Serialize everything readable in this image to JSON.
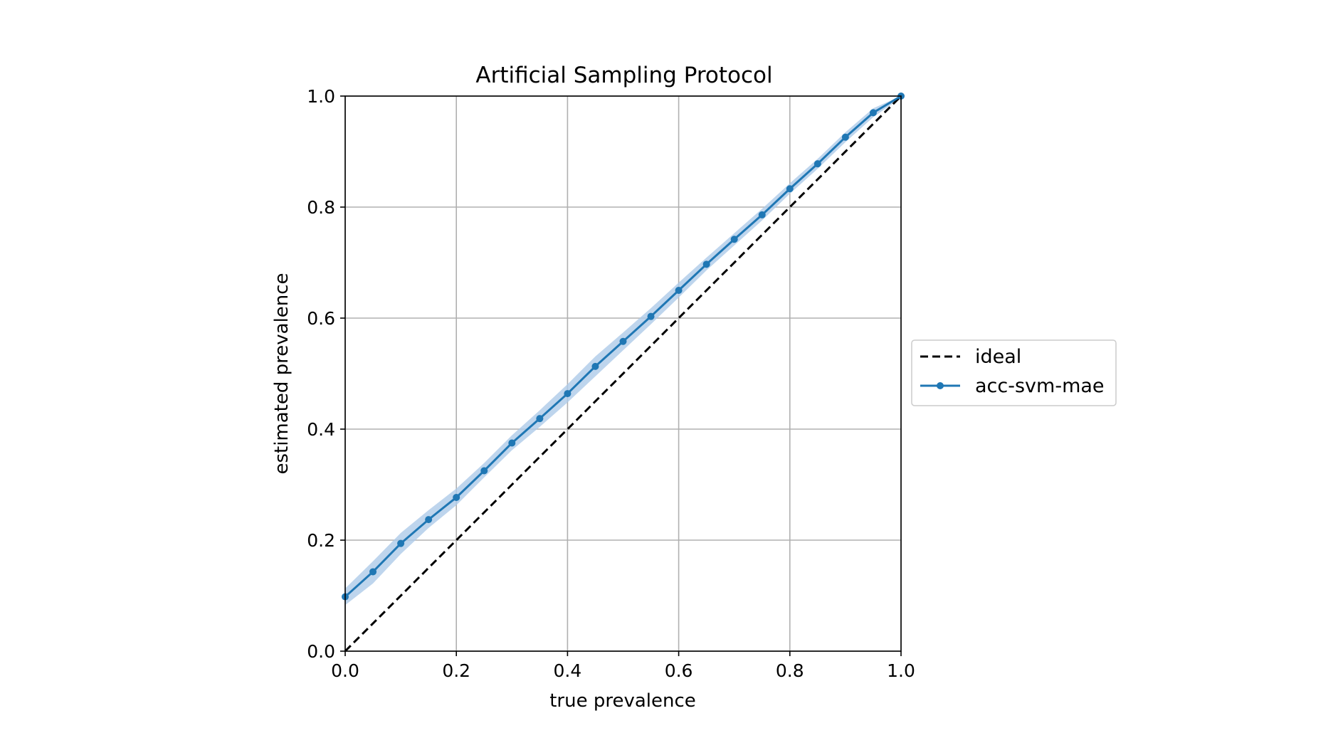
{
  "chart_data": {
    "type": "line",
    "title": "Artificial Sampling Protocol",
    "xlabel": "true prevalence",
    "ylabel": "estimated prevalence",
    "xlim": [
      0,
      1
    ],
    "ylim": [
      0,
      1
    ],
    "xticks": [
      "0.0",
      "0.2",
      "0.4",
      "0.6",
      "0.8",
      "1.0"
    ],
    "yticks": [
      "0.0",
      "0.2",
      "0.4",
      "0.6",
      "0.8",
      "1.0"
    ],
    "grid": true,
    "legend_position": "outside-right",
    "series": [
      {
        "name": "ideal",
        "style": "dashed",
        "color": "#000000",
        "x": [
          0,
          1
        ],
        "y": [
          0,
          1
        ]
      },
      {
        "name": "acc-svm-mae",
        "style": "solid-with-markers",
        "color": "#1f77b4",
        "band_color": "#aecbe8",
        "x": [
          0,
          0.05,
          0.1,
          0.15,
          0.2,
          0.25,
          0.3,
          0.35,
          0.4,
          0.45,
          0.5,
          0.55,
          0.6,
          0.65,
          0.7,
          0.75,
          0.8,
          0.85,
          0.9,
          0.95,
          1.0
        ],
        "y": [
          0.098,
          0.143,
          0.194,
          0.237,
          0.277,
          0.325,
          0.375,
          0.419,
          0.464,
          0.513,
          0.558,
          0.603,
          0.65,
          0.697,
          0.742,
          0.786,
          0.833,
          0.878,
          0.926,
          0.97,
          1.0
        ],
        "band_lower": [
          0.083,
          0.122,
          0.175,
          0.222,
          0.263,
          0.313,
          0.362,
          0.404,
          0.448,
          0.495,
          0.542,
          0.589,
          0.637,
          0.686,
          0.731,
          0.776,
          0.824,
          0.869,
          0.917,
          0.962,
          0.997
        ],
        "band_upper": [
          0.113,
          0.162,
          0.213,
          0.254,
          0.293,
          0.339,
          0.389,
          0.434,
          0.481,
          0.531,
          0.574,
          0.618,
          0.664,
          0.709,
          0.753,
          0.797,
          0.843,
          0.887,
          0.935,
          0.978,
          1.0
        ]
      }
    ]
  }
}
